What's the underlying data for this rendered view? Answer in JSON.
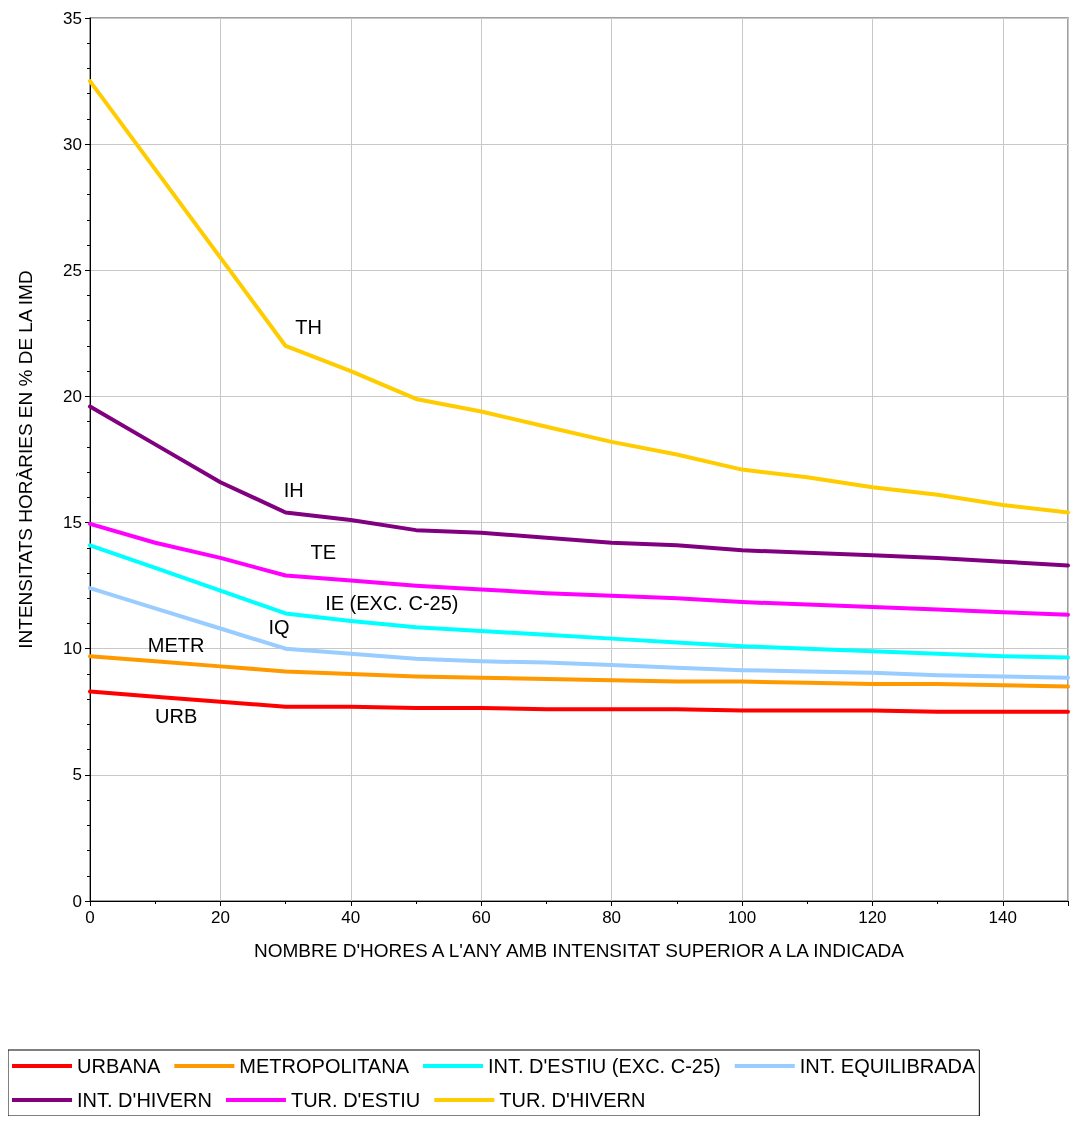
{
  "chart_data": {
    "type": "line",
    "xlabel": "NOMBRE D'HORES A L'ANY AMB INTENSITAT SUPERIOR A LA INDICADA",
    "ylabel": "INTENSITATS HORÀRIES EN % DE LA IMD",
    "x": [
      0,
      10,
      20,
      30,
      40,
      50,
      60,
      70,
      80,
      90,
      100,
      110,
      120,
      130,
      140,
      150
    ],
    "series": [
      {
        "name": "URBANA",
        "color": "#ff0000",
        "values": [
          8.3,
          8.1,
          7.9,
          7.7,
          7.7,
          7.65,
          7.65,
          7.6,
          7.6,
          7.6,
          7.55,
          7.55,
          7.55,
          7.5,
          7.5,
          7.5
        ]
      },
      {
        "name": "METROPOLITANA",
        "color": "#ff9900",
        "values": [
          9.7,
          9.5,
          9.3,
          9.1,
          9.0,
          8.9,
          8.85,
          8.8,
          8.75,
          8.7,
          8.7,
          8.65,
          8.6,
          8.6,
          8.55,
          8.5
        ]
      },
      {
        "name": "INT. D'ESTIU (EXC. C-25)",
        "color": "#00ffff",
        "values": [
          14.1,
          13.2,
          12.3,
          11.4,
          11.1,
          10.85,
          10.7,
          10.55,
          10.4,
          10.25,
          10.1,
          10.0,
          9.9,
          9.8,
          9.7,
          9.65
        ]
      },
      {
        "name": "INT. EQUILIBRADA",
        "color": "#99ccff",
        "values": [
          12.4,
          11.6,
          10.8,
          10.0,
          9.8,
          9.6,
          9.5,
          9.45,
          9.35,
          9.25,
          9.15,
          9.1,
          9.05,
          8.95,
          8.9,
          8.85
        ]
      },
      {
        "name": "INT. D'HIVERN",
        "color": "#800080",
        "values": [
          19.6,
          18.1,
          16.6,
          15.4,
          15.1,
          14.7,
          14.6,
          14.4,
          14.2,
          14.1,
          13.9,
          13.8,
          13.7,
          13.6,
          13.45,
          13.3
        ]
      },
      {
        "name": "TUR. D'ESTIU",
        "color": "#ff00ff",
        "values": [
          14.95,
          14.2,
          13.6,
          12.9,
          12.7,
          12.5,
          12.35,
          12.2,
          12.1,
          12.0,
          11.85,
          11.75,
          11.65,
          11.55,
          11.45,
          11.35
        ]
      },
      {
        "name": "TUR. D'HIVERN",
        "color": "#ffcc00",
        "values": [
          32.5,
          29.0,
          25.5,
          22.0,
          21.0,
          19.9,
          19.4,
          18.8,
          18.2,
          17.7,
          17.1,
          16.8,
          16.4,
          16.1,
          15.7,
          15.4
        ]
      }
    ],
    "annotations": [
      "TH",
      "IH",
      "TE",
      "IE (EXC. C-25)",
      "IQ",
      "METR",
      "URB"
    ],
    "xlim": [
      0,
      150
    ],
    "xticks": [
      0,
      20,
      40,
      60,
      80,
      100,
      120,
      140
    ],
    "ylim": [
      0,
      35
    ],
    "yticks": [
      0,
      5,
      10,
      15,
      20,
      25,
      30,
      35
    ],
    "grid": true,
    "legend": "bottom",
    "marker": "none",
    "line_style": "solid"
  }
}
